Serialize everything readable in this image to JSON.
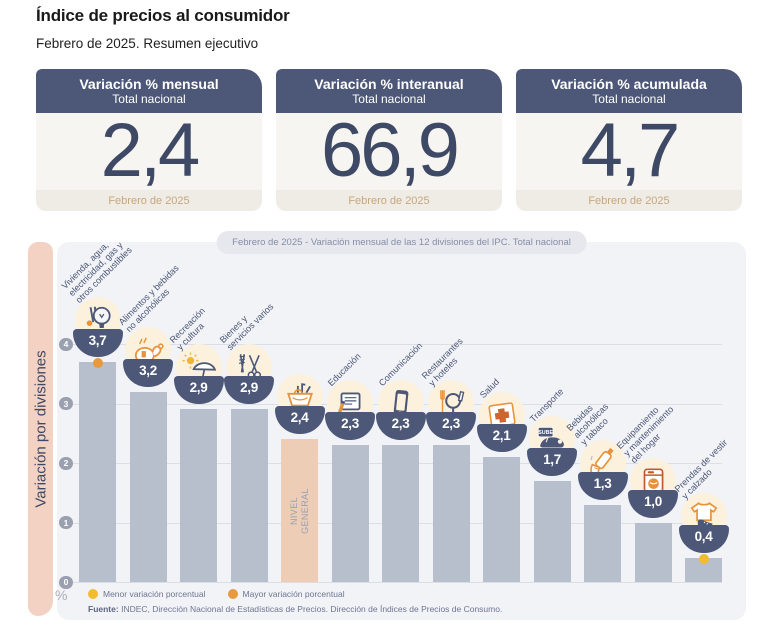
{
  "page": {
    "title": "Índice de precios al consumidor",
    "subtitle": "Febrero de 2025. Resumen ejecutivo"
  },
  "summary_cards": [
    {
      "title": "Variación % mensual",
      "subtitle": "Total nacional",
      "value": "2,4",
      "period": "Febrero de 2025"
    },
    {
      "title": "Variación % interanual",
      "subtitle": "Total nacional",
      "value": "66,9",
      "period": "Febrero de 2025"
    },
    {
      "title": "Variación % acumulada",
      "subtitle": "Total nacional",
      "value": "4,7",
      "period": "Febrero de 2025"
    }
  ],
  "chart_data": {
    "type": "bar",
    "title": "Febrero de 2025 - Variación mensual de las 12 divisiones del IPC. Total nacional",
    "ylabel": "Variación por divisiones",
    "unit": "%",
    "ylim": [
      0,
      4
    ],
    "yticks": [
      0,
      1,
      2,
      3,
      4
    ],
    "grid": true,
    "legend_position": "bottom",
    "divisions": [
      {
        "name": "Vivienda, agua, electricidad, gas y otros combustibles",
        "label_lines": [
          "Vivienda, agua,",
          "electricidad, gas y",
          "otros combustibles"
        ],
        "icon": "housing-utilities-icon",
        "value": 3.7,
        "display": "3,7",
        "marker": "max"
      },
      {
        "name": "Alimentos y bebidas no alcohólicas",
        "label_lines": [
          "Alimentos y bebidas",
          "no alcohólicas"
        ],
        "icon": "food-beverages-icon",
        "value": 3.2,
        "display": "3,2"
      },
      {
        "name": "Recreación y cultura",
        "label_lines": [
          "Recreación",
          "y cultura"
        ],
        "icon": "recreation-culture-icon",
        "value": 2.9,
        "display": "2,9"
      },
      {
        "name": "Bienes y servicios varios",
        "label_lines": [
          "Bienes y",
          "servicios varios"
        ],
        "icon": "goods-services-icon",
        "value": 2.9,
        "display": "2,9"
      },
      {
        "name": "Nivel general",
        "bar_label_lines": [
          "NIVEL",
          "GENERAL"
        ],
        "icon": "general-basket-icon",
        "value": 2.4,
        "display": "2,4",
        "highlight": true
      },
      {
        "name": "Educación",
        "label_lines": [
          "Educación"
        ],
        "icon": "education-icon",
        "value": 2.3,
        "display": "2,3"
      },
      {
        "name": "Comunicación",
        "label_lines": [
          "Comunicación"
        ],
        "icon": "communication-icon",
        "value": 2.3,
        "display": "2,3"
      },
      {
        "name": "Restaurantes y hoteles",
        "label_lines": [
          "Restaurantes",
          "y hoteles"
        ],
        "icon": "restaurants-hotels-icon",
        "value": 2.3,
        "display": "2,3"
      },
      {
        "name": "Salud",
        "label_lines": [
          "Salud"
        ],
        "icon": "health-icon",
        "value": 2.1,
        "display": "2,1"
      },
      {
        "name": "Transporte",
        "label_lines": [
          "Transporte"
        ],
        "icon": "transport-icon",
        "icon_text": "SUBE",
        "value": 1.7,
        "display": "1,7"
      },
      {
        "name": "Bebidas alcohólicas y tabaco",
        "label_lines": [
          "Bebidas",
          "alcohólicas",
          "y tabaco"
        ],
        "icon": "alcohol-tobacco-icon",
        "value": 1.3,
        "display": "1,3"
      },
      {
        "name": "Equipamiento y mantenimiento del hogar",
        "label_lines": [
          "Equipamiento",
          "y mantenimiento",
          "del hogar"
        ],
        "icon": "home-equipment-icon",
        "value": 1.0,
        "display": "1,0"
      },
      {
        "name": "Prendas de vestir y calzado",
        "label_lines": [
          "Prendas de vestir",
          "y calzado"
        ],
        "icon": "clothing-footwear-icon",
        "value": 0.4,
        "display": "0,4",
        "marker": "min"
      }
    ],
    "markers": {
      "min": {
        "label": "Menor variación porcentual",
        "color": "#F2BC2E"
      },
      "max": {
        "label": "Mayor variación porcentual",
        "color": "#E79A3D"
      }
    },
    "legend_order": [
      "min",
      "max"
    ],
    "source_label": "Fuente:",
    "source_text": "INDEC, Dirección Nacional de Estadísticas de Precios. Dirección de Índices de Precios de Consumo."
  },
  "colors": {
    "header_navy": "#4D5878",
    "card_body_bg": "#F7F5F1",
    "card_footer_bg": "#EFECE5",
    "card_footer_text": "#C7A67C",
    "card_value_text": "#3E4965",
    "panel_bg": "#F2F3F7",
    "band_bg": "#F4D2C3",
    "bar": "#B7BECC",
    "bar_highlight": "#EECDB6",
    "medallion_circle": "#FBF1DD",
    "gridline": "#DCDEE6",
    "tick": "#9AA0AF",
    "icon_orange": "#E8923C",
    "marker_min": "#F2BC2E",
    "marker_max": "#E79A3D"
  }
}
